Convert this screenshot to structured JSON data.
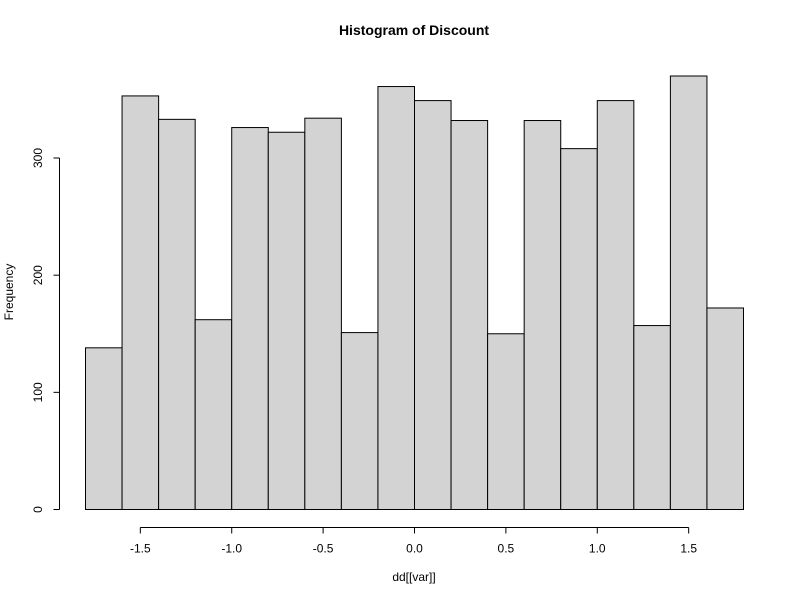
{
  "chart_data": {
    "type": "bar",
    "title": "Histogram of Discount",
    "xlabel": "dd[[var]]",
    "ylabel": "Frequency",
    "bin_edges": [
      -1.8,
      -1.6,
      -1.4,
      -1.2,
      -1.0,
      -0.8,
      -0.6,
      -0.4,
      -0.2,
      0.0,
      0.2,
      0.4,
      0.6,
      0.8,
      1.0,
      1.2,
      1.4,
      1.6,
      1.8
    ],
    "values": [
      138,
      353,
      333,
      162,
      326,
      322,
      334,
      151,
      361,
      349,
      332,
      150,
      332,
      308,
      349,
      157,
      370,
      172
    ],
    "x_ticks": [
      -1.5,
      -1.0,
      -0.5,
      0.0,
      0.5,
      1.0,
      1.5
    ],
    "x_tick_labels": [
      "-1.5",
      "-1.0",
      "-0.5",
      "0.0",
      "0.5",
      "1.0",
      "1.5"
    ],
    "y_ticks": [
      0,
      100,
      200,
      300
    ],
    "y_tick_labels": [
      "0",
      "100",
      "200",
      "300"
    ],
    "xlim": [
      -1.8,
      1.8
    ],
    "ylim": [
      0,
      370
    ],
    "bar_color": "#d3d3d3",
    "grid": false
  }
}
